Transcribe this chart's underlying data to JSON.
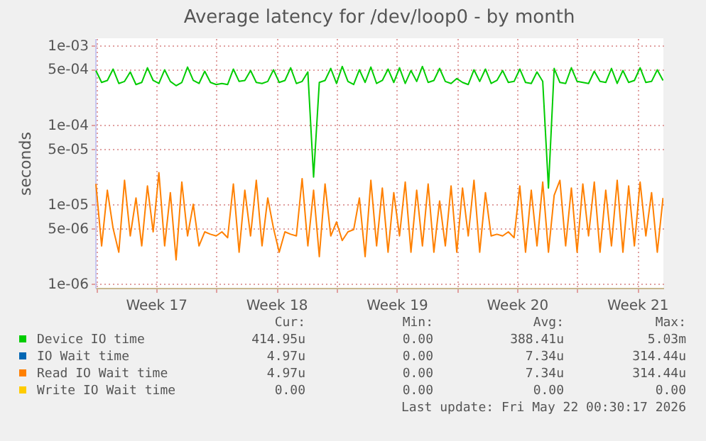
{
  "chart_data": {
    "type": "line",
    "title": "Average latency for /dev/loop0 - by month",
    "ylabel": "seconds",
    "log": "y",
    "grid": true,
    "legend": "bottom",
    "line_style": "solid",
    "marker": "none",
    "xlim": [
      "2026-04-18T23:00",
      "2026-05-22T00:30"
    ],
    "xticks": [
      {
        "value": "2026-04-19",
        "label": null
      },
      {
        "value": "2026-04-22T12:00",
        "label": "Week 17"
      },
      {
        "value": "2026-04-26",
        "label": null
      },
      {
        "value": "2026-04-29T12:00",
        "label": "Week 18"
      },
      {
        "value": "2026-05-03",
        "label": null
      },
      {
        "value": "2026-05-06T12:00",
        "label": "Week 19"
      },
      {
        "value": "2026-05-10",
        "label": null
      },
      {
        "value": "2026-05-13T12:00",
        "label": "Week 20"
      },
      {
        "value": "2026-05-17",
        "label": null
      },
      {
        "value": "2026-05-20T12:00",
        "label": "Week 21"
      }
    ],
    "ylim": [
      8.9e-07,
      0.00122
    ],
    "yticks": [
      {
        "value": 1e-06,
        "label": "1e-06"
      },
      {
        "value": 5e-06,
        "label": "5e-06"
      },
      {
        "value": 1e-05,
        "label": "1e-05"
      },
      {
        "value": 5e-05,
        "label": "5e-05"
      },
      {
        "value": 0.0001,
        "label": "1e-04"
      },
      {
        "value": 0.0005,
        "label": "5e-04"
      },
      {
        "value": 0.001,
        "label": "1e-03"
      }
    ],
    "x": [
      "2026-04-19T00:00",
      "2026-04-19T08:00",
      "2026-04-19T16:00",
      "2026-04-20T00:00",
      "2026-04-20T08:00",
      "2026-04-20T16:00",
      "2026-04-21T00:00",
      "2026-04-21T08:00",
      "2026-04-21T16:00",
      "2026-04-22T00:00",
      "2026-04-22T08:00",
      "2026-04-22T16:00",
      "2026-04-23T00:00",
      "2026-04-23T08:00",
      "2026-04-23T16:00",
      "2026-04-24T00:00",
      "2026-04-24T08:00",
      "2026-04-24T16:00",
      "2026-04-25T00:00",
      "2026-04-25T08:00",
      "2026-04-25T16:00",
      "2026-04-26T00:00",
      "2026-04-26T08:00",
      "2026-04-26T16:00",
      "2026-04-27T00:00",
      "2026-04-27T08:00",
      "2026-04-27T16:00",
      "2026-04-28T00:00",
      "2026-04-28T08:00",
      "2026-04-28T16:00",
      "2026-04-29T00:00",
      "2026-04-29T08:00",
      "2026-04-29T16:00",
      "2026-04-30T00:00",
      "2026-04-30T08:00",
      "2026-04-30T16:00",
      "2026-05-01T00:00",
      "2026-05-01T08:00",
      "2026-05-01T16:00",
      "2026-05-02T00:00",
      "2026-05-02T08:00",
      "2026-05-02T16:00",
      "2026-05-03T00:00",
      "2026-05-03T08:00",
      "2026-05-03T16:00",
      "2026-05-04T00:00",
      "2026-05-04T08:00",
      "2026-05-04T16:00",
      "2026-05-05T00:00",
      "2026-05-05T08:00",
      "2026-05-05T16:00",
      "2026-05-06T00:00",
      "2026-05-06T08:00",
      "2026-05-06T16:00",
      "2026-05-07T00:00",
      "2026-05-07T08:00",
      "2026-05-07T16:00",
      "2026-05-08T00:00",
      "2026-05-08T08:00",
      "2026-05-08T16:00",
      "2026-05-09T00:00",
      "2026-05-09T08:00",
      "2026-05-09T16:00",
      "2026-05-10T00:00",
      "2026-05-10T08:00",
      "2026-05-10T16:00",
      "2026-05-11T00:00",
      "2026-05-11T08:00",
      "2026-05-11T16:00",
      "2026-05-12T00:00",
      "2026-05-12T08:00",
      "2026-05-12T16:00",
      "2026-05-13T00:00",
      "2026-05-13T08:00",
      "2026-05-13T16:00",
      "2026-05-14T00:00",
      "2026-05-14T08:00",
      "2026-05-14T16:00",
      "2026-05-15T00:00",
      "2026-05-15T08:00",
      "2026-05-15T16:00",
      "2026-05-16T00:00",
      "2026-05-16T08:00",
      "2026-05-16T16:00",
      "2026-05-17T00:00",
      "2026-05-17T08:00",
      "2026-05-17T16:00",
      "2026-05-18T00:00",
      "2026-05-18T08:00",
      "2026-05-18T16:00",
      "2026-05-19T00:00",
      "2026-05-19T08:00",
      "2026-05-19T16:00",
      "2026-05-20T00:00",
      "2026-05-20T08:00",
      "2026-05-20T16:00",
      "2026-05-21T00:00",
      "2026-05-21T08:00",
      "2026-05-21T16:00",
      "2026-05-22T00:00"
    ],
    "series": [
      {
        "name": "Device IO time",
        "color": "#00cc00",
        "values": [
          0.00048,
          0.00034,
          0.00036,
          0.0005,
          0.00033,
          0.00035,
          0.00046,
          0.00032,
          0.00034,
          0.00052,
          0.00036,
          0.00033,
          0.00049,
          0.00035,
          0.00031,
          0.00034,
          0.00053,
          0.00036,
          0.00033,
          0.00047,
          0.00034,
          0.00032,
          0.00033,
          0.00032,
          0.0005,
          0.00035,
          0.00036,
          0.00048,
          0.00034,
          0.00033,
          0.00035,
          0.00049,
          0.00034,
          0.00036,
          0.00052,
          0.00033,
          0.00035,
          0.00046,
          2.2e-05,
          0.00034,
          0.00036,
          0.00051,
          0.00033,
          0.00054,
          0.00035,
          0.00032,
          0.00049,
          0.00034,
          0.00053,
          0.00033,
          0.00036,
          0.0005,
          0.00034,
          0.00052,
          0.00033,
          0.00048,
          0.00035,
          0.00054,
          0.00034,
          0.00036,
          0.00051,
          0.00035,
          0.00033,
          0.00038,
          0.00034,
          0.00032,
          0.00049,
          0.00035,
          0.0005,
          0.00033,
          0.00036,
          0.00048,
          0.00034,
          0.00035,
          0.0005,
          0.00034,
          0.00033,
          0.00046,
          0.00035,
          1.6e-05,
          0.00051,
          0.00034,
          0.00033,
          0.00052,
          0.00035,
          0.00034,
          0.00033,
          0.00047,
          0.00035,
          0.00034,
          0.00051,
          0.00033,
          0.00048,
          0.00034,
          0.00036,
          0.00052,
          0.00034,
          0.00035,
          0.00049,
          0.00036
        ]
      },
      {
        "name": "IO Wait time",
        "color": "#0066b3",
        "values": [
          null,
          null,
          null,
          null,
          null,
          null,
          null,
          null,
          null,
          null,
          null,
          null,
          null,
          null,
          null,
          null,
          null,
          null,
          null,
          null,
          null,
          null,
          null,
          null,
          null,
          null,
          null,
          null,
          null,
          null,
          null,
          null,
          null,
          null,
          null,
          null,
          null,
          null,
          null,
          null,
          null,
          null,
          null,
          null,
          null,
          null,
          null,
          null,
          null,
          null,
          null,
          null,
          null,
          null,
          null,
          null,
          null,
          null,
          null,
          null,
          null,
          null,
          null,
          null,
          null,
          null,
          null,
          null,
          null,
          null,
          null,
          null,
          null,
          null,
          null,
          null,
          null,
          null,
          null,
          null,
          null,
          null,
          null,
          null,
          null,
          null,
          null,
          null,
          null,
          null,
          null,
          null,
          null,
          null,
          null,
          null,
          null,
          null,
          null,
          null
        ]
      },
      {
        "name": "Read IO Wait time",
        "color": "#ff8000",
        "values": [
          1.8e-05,
          3e-06,
          1.5e-05,
          5e-06,
          2.5e-06,
          2e-05,
          4e-06,
          1.2e-05,
          3e-06,
          1.7e-05,
          4.5e-06,
          2.5e-05,
          3e-06,
          1.4e-05,
          2e-06,
          1.9e-05,
          4e-06,
          1e-05,
          3e-06,
          4.5e-06,
          4.2e-06,
          4e-06,
          4.5e-06,
          3.8e-06,
          1.8e-05,
          2.5e-06,
          1.5e-05,
          4e-06,
          2e-05,
          3e-06,
          1.2e-05,
          5e-06,
          2.5e-06,
          4.5e-06,
          4.2e-06,
          4e-06,
          2.1e-05,
          3e-06,
          1.5e-05,
          2.2e-06,
          1.8e-05,
          4e-06,
          6e-06,
          3.5e-06,
          4.5e-06,
          4.8e-06,
          1.2e-05,
          2.2e-06,
          2e-05,
          3e-06,
          1.6e-05,
          2.5e-06,
          1.4e-05,
          4e-06,
          1.9e-05,
          2.5e-06,
          1.5e-05,
          3e-06,
          1.8e-05,
          2.5e-06,
          1.1e-05,
          3e-06,
          1.7e-05,
          2.5e-06,
          1.6e-05,
          4e-06,
          2e-05,
          2.5e-06,
          1.4e-05,
          4e-06,
          4.2e-06,
          4e-06,
          4.5e-06,
          3.8e-06,
          1.7e-05,
          2.5e-06,
          1.5e-05,
          3e-06,
          1.9e-05,
          2.5e-06,
          1.3e-05,
          2e-05,
          3e-06,
          1.6e-05,
          2.5e-06,
          1.8e-05,
          4e-06,
          1.9e-05,
          2.5e-06,
          1.5e-05,
          3e-06,
          2e-05,
          2.5e-06,
          1.7e-05,
          3e-06,
          1.9e-05,
          4e-06,
          1.4e-05,
          2.5e-06,
          1.2e-05
        ]
      },
      {
        "name": "Write IO Wait time",
        "color": "#ffcc00",
        "values": [
          null,
          null,
          null,
          null,
          null,
          null,
          null,
          null,
          null,
          null,
          null,
          null,
          null,
          null,
          null,
          null,
          null,
          null,
          null,
          null,
          null,
          null,
          null,
          null,
          null,
          null,
          null,
          null,
          null,
          null,
          null,
          null,
          null,
          null,
          null,
          null,
          null,
          null,
          null,
          null,
          null,
          null,
          null,
          null,
          null,
          null,
          null,
          null,
          null,
          null,
          null,
          null,
          null,
          null,
          null,
          null,
          null,
          null,
          null,
          null,
          null,
          null,
          null,
          null,
          null,
          null,
          null,
          null,
          null,
          null,
          null,
          null,
          null,
          null,
          null,
          null,
          null,
          null,
          null,
          null,
          null,
          null,
          null,
          null,
          null,
          null,
          null,
          null,
          null,
          null,
          null,
          null,
          null,
          null,
          null,
          null,
          null,
          null,
          null,
          null
        ]
      }
    ],
    "annotations": [
      "Cur:",
      "Min:",
      "Avg:",
      "Max:",
      "414.95u",
      "0.00",
      "388.41u",
      "5.03m",
      "4.97u",
      "0.00",
      "7.34u",
      "314.44u",
      "4.97u",
      "0.00",
      "7.34u",
      "314.44u",
      "0.00",
      "0.00",
      "0.00",
      "0.00",
      "Last update: Fri May 22 00:30:17 2026"
    ]
  }
}
